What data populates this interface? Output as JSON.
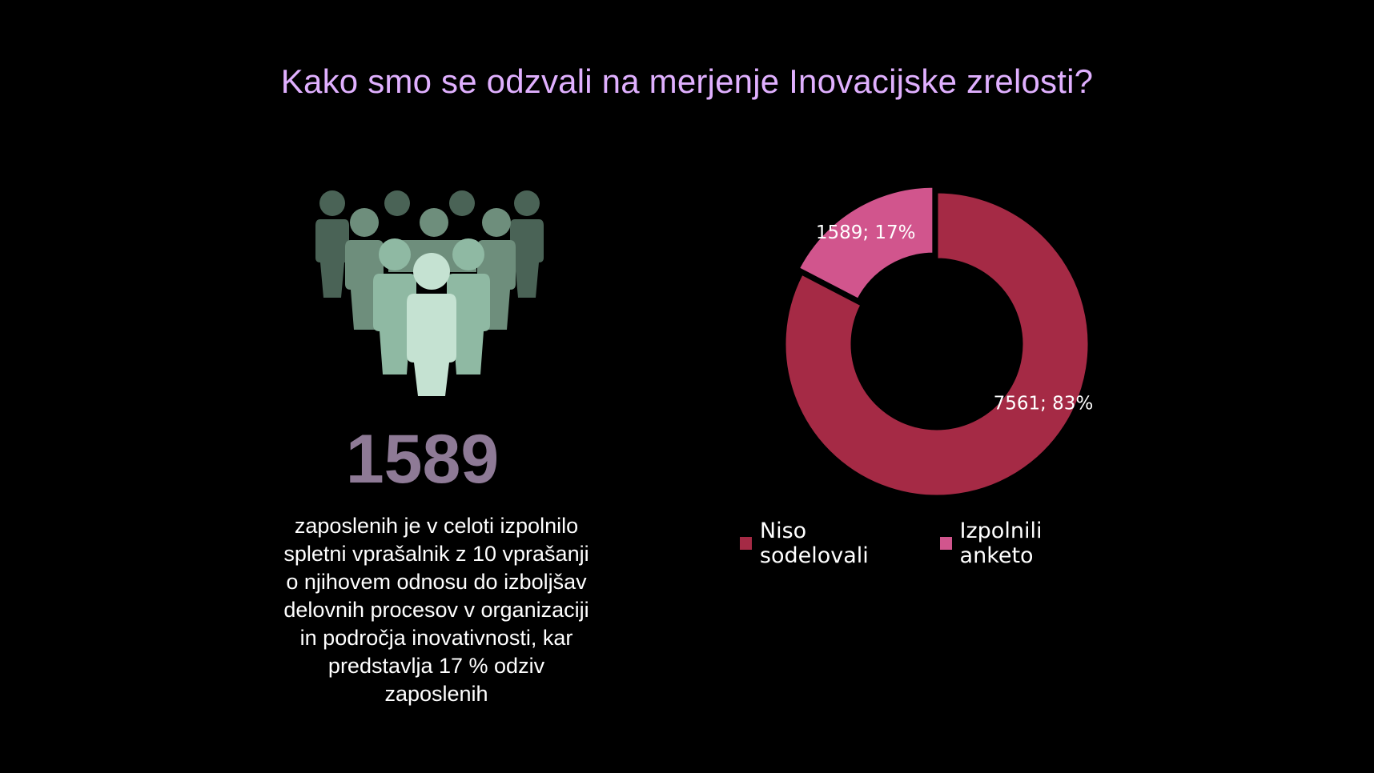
{
  "title": "Kako smo se odzvali na merjenje Inovacijske zrelosti?",
  "highlight": {
    "number": "1589",
    "description_lines": [
      "zaposlenih je v celoti izpolnilo",
      "spletni vprašalnik z 10 vprašanji",
      "o njihovem odnosu do izboljšav",
      "delovnih procesov v organizaciji",
      "in področja inovativnosti, kar",
      "predstavlja 17 % odziv",
      "zaposlenih"
    ],
    "icon": "people-group-icon"
  },
  "colors": {
    "title": "#e0b0ff",
    "big_number": "#8e7a96",
    "niso_sodelovali": "#a52a45",
    "izpolnili_anketo": "#d1558d"
  },
  "chart_data": {
    "type": "pie",
    "donut": true,
    "title": "",
    "series": [
      {
        "name": "Niso sodelovali",
        "value": 7561,
        "percent": 83,
        "label": "7561; 83%",
        "color": "#a52a45"
      },
      {
        "name": "Izpolnili anketo",
        "value": 1589,
        "percent": 17,
        "label": "1589; 17%",
        "color": "#d1558d"
      }
    ],
    "legend_position": "bottom"
  }
}
